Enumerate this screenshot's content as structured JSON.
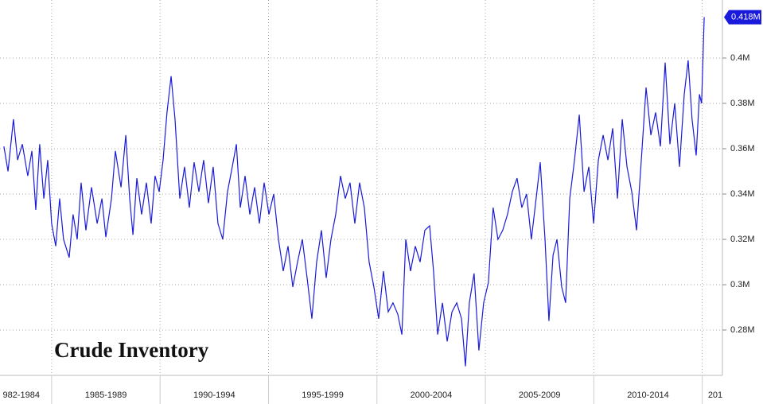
{
  "chart_data": {
    "type": "line",
    "title": "Crude Inventory",
    "color": "#1a1adc",
    "xlim": [
      1982.62,
      2015.93
    ],
    "ylim": [
      0.26,
      0.4256
    ],
    "xticks": [
      1985,
      1990,
      1995,
      2000,
      2005,
      2010,
      2015
    ],
    "x_labels": [
      {
        "value": 1983.6,
        "label": "982-1984"
      },
      {
        "value": 1987.5,
        "label": "1985-1989"
      },
      {
        "value": 1992.5,
        "label": "1990-1994"
      },
      {
        "value": 1997.5,
        "label": "1995-1999"
      },
      {
        "value": 2002.5,
        "label": "2000-2004"
      },
      {
        "value": 2007.5,
        "label": "2005-2009"
      },
      {
        "value": 2012.5,
        "label": "2010-2014"
      },
      {
        "value": 2015.6,
        "label": "201"
      }
    ],
    "yticks": [
      {
        "value": 0.28,
        "label": "0.28M"
      },
      {
        "value": 0.3,
        "label": "0.3M"
      },
      {
        "value": 0.32,
        "label": "0.32M"
      },
      {
        "value": 0.34,
        "label": "0.34M"
      },
      {
        "value": 0.36,
        "label": "0.36M"
      },
      {
        "value": 0.38,
        "label": "0.38M"
      },
      {
        "value": 0.4,
        "label": "0.4M"
      }
    ],
    "grid": true,
    "last_value_label": "0.418M",
    "x": [
      1982.8,
      1982.99,
      1983.24,
      1983.43,
      1983.65,
      1983.9,
      1984.09,
      1984.27,
      1984.45,
      1984.64,
      1984.82,
      1985.0,
      1985.19,
      1985.37,
      1985.55,
      1985.81,
      1985.99,
      1986.18,
      1986.36,
      1986.58,
      1986.84,
      1987.1,
      1987.32,
      1987.5,
      1987.76,
      1987.94,
      1988.2,
      1988.42,
      1988.6,
      1988.75,
      1988.93,
      1989.15,
      1989.37,
      1989.59,
      1989.77,
      1989.96,
      1990.14,
      1990.32,
      1990.51,
      1990.69,
      1990.91,
      1991.13,
      1991.35,
      1991.57,
      1991.79,
      1992.01,
      1992.23,
      1992.45,
      1992.67,
      1992.89,
      1993.11,
      1993.33,
      1993.52,
      1993.7,
      1993.92,
      1994.14,
      1994.36,
      1994.58,
      1994.8,
      1995.02,
      1995.24,
      1995.46,
      1995.68,
      1995.9,
      1996.12,
      1996.34,
      1996.56,
      1996.78,
      1997.0,
      1997.22,
      1997.44,
      1997.66,
      1997.88,
      1998.1,
      1998.32,
      1998.54,
      1998.76,
      1998.98,
      1999.2,
      1999.42,
      1999.64,
      1999.86,
      2000.08,
      2000.3,
      2000.52,
      2000.74,
      2000.96,
      2001.15,
      2001.33,
      2001.55,
      2001.77,
      2001.99,
      2002.21,
      2002.43,
      2002.61,
      2002.8,
      2003.02,
      2003.24,
      2003.46,
      2003.68,
      2003.9,
      2004.08,
      2004.26,
      2004.48,
      2004.7,
      2004.92,
      2005.14,
      2005.36,
      2005.58,
      2005.8,
      2006.02,
      2006.24,
      2006.46,
      2006.68,
      2006.9,
      2007.12,
      2007.34,
      2007.53,
      2007.75,
      2007.93,
      2008.12,
      2008.3,
      2008.52,
      2008.7,
      2008.89,
      2009.11,
      2009.33,
      2009.55,
      2009.77,
      2009.99,
      2010.21,
      2010.43,
      2010.65,
      2010.87,
      2011.09,
      2011.31,
      2011.53,
      2011.75,
      2011.97,
      2012.19,
      2012.41,
      2012.63,
      2012.85,
      2013.07,
      2013.29,
      2013.51,
      2013.73,
      2013.95,
      2014.17,
      2014.35,
      2014.53,
      2014.72,
      2014.87,
      2014.97,
      2015.09
    ],
    "values": [
      0.361,
      0.35,
      0.373,
      0.355,
      0.362,
      0.348,
      0.359,
      0.333,
      0.362,
      0.338,
      0.355,
      0.327,
      0.317,
      0.338,
      0.32,
      0.312,
      0.331,
      0.32,
      0.345,
      0.324,
      0.343,
      0.327,
      0.338,
      0.321,
      0.338,
      0.359,
      0.343,
      0.366,
      0.338,
      0.322,
      0.347,
      0.331,
      0.345,
      0.327,
      0.348,
      0.341,
      0.355,
      0.376,
      0.392,
      0.373,
      0.338,
      0.352,
      0.334,
      0.354,
      0.341,
      0.355,
      0.336,
      0.352,
      0.327,
      0.32,
      0.341,
      0.352,
      0.362,
      0.334,
      0.348,
      0.331,
      0.343,
      0.327,
      0.345,
      0.331,
      0.34,
      0.32,
      0.306,
      0.317,
      0.299,
      0.31,
      0.32,
      0.303,
      0.285,
      0.31,
      0.324,
      0.303,
      0.32,
      0.331,
      0.348,
      0.338,
      0.345,
      0.327,
      0.345,
      0.334,
      0.31,
      0.299,
      0.285,
      0.306,
      0.288,
      0.292,
      0.287,
      0.278,
      0.32,
      0.306,
      0.317,
      0.31,
      0.324,
      0.326,
      0.306,
      0.278,
      0.292,
      0.275,
      0.288,
      0.292,
      0.285,
      0.264,
      0.292,
      0.305,
      0.271,
      0.292,
      0.301,
      0.334,
      0.32,
      0.324,
      0.331,
      0.341,
      0.347,
      0.334,
      0.34,
      0.32,
      0.338,
      0.354,
      0.32,
      0.284,
      0.313,
      0.32,
      0.299,
      0.292,
      0.338,
      0.355,
      0.375,
      0.341,
      0.352,
      0.327,
      0.355,
      0.366,
      0.355,
      0.369,
      0.338,
      0.373,
      0.352,
      0.341,
      0.324,
      0.355,
      0.387,
      0.366,
      0.376,
      0.361,
      0.398,
      0.362,
      0.38,
      0.352,
      0.384,
      0.399,
      0.373,
      0.357,
      0.384,
      0.38,
      0.418
    ]
  }
}
